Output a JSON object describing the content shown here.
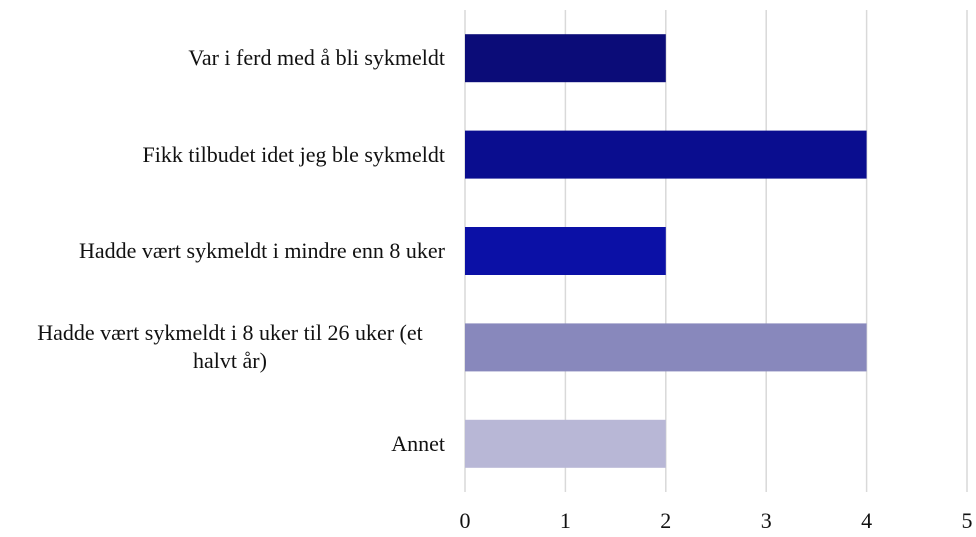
{
  "chart_data": {
    "type": "bar",
    "orientation": "horizontal",
    "categories": [
      "Var i ferd med å bli sykmeldt",
      "Fikk tilbudet idet jeg ble sykmeldt",
      "Hadde vært sykmeldt i mindre enn 8 uker",
      "Hadde vært sykmeldt i 8 uker til 26 uker (et halvt år)",
      "Annet"
    ],
    "values": [
      2,
      4,
      2,
      4,
      2
    ],
    "colors": [
      "#0b0c78",
      "#0a0d8f",
      "#0b10a6",
      "#8888bc",
      "#b8b7d6"
    ],
    "xlim": [
      0,
      5
    ],
    "xticks": [
      0,
      1,
      2,
      3,
      4,
      5
    ],
    "grid": true
  }
}
